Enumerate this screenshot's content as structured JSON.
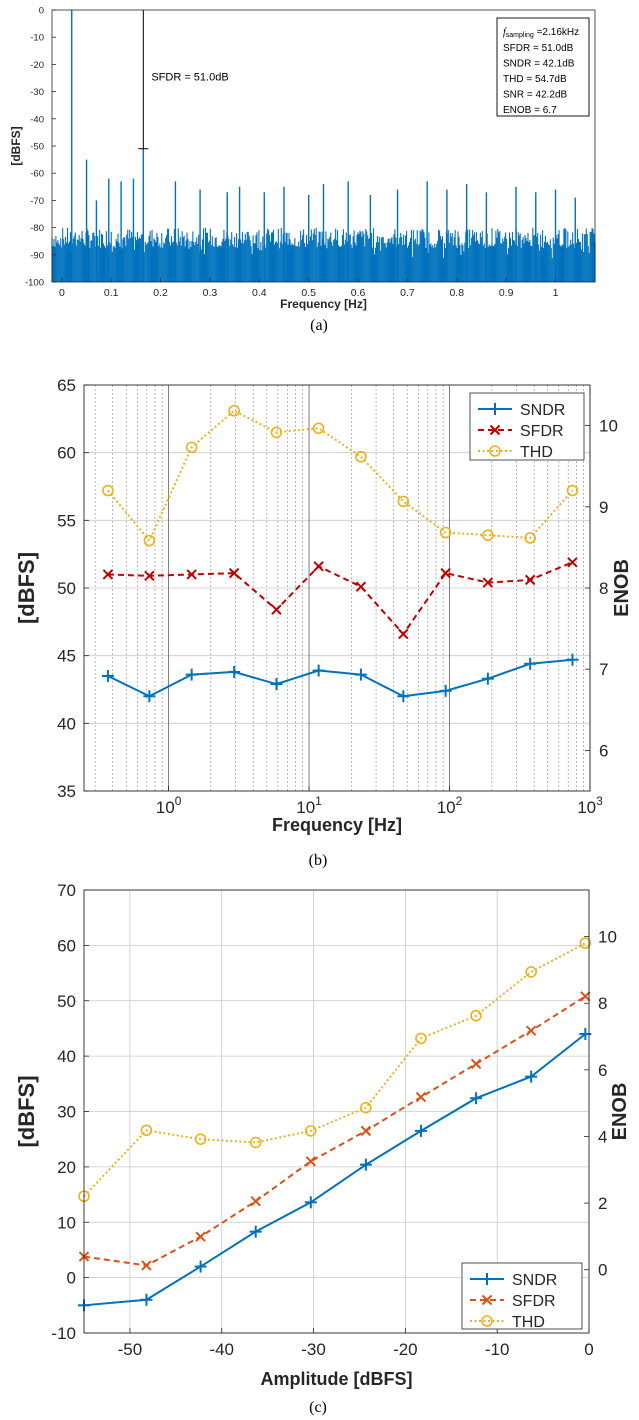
{
  "chart_data": [
    {
      "type": "line",
      "panel": "a",
      "caption": "(a)",
      "xlabel": "Frequency [Hz]",
      "ylabel": "[dBFS]",
      "xlim": [
        -0.02,
        1.08
      ],
      "ylim": [
        -100,
        0
      ],
      "xticks": [
        0,
        0.1,
        0.2,
        0.3,
        0.4,
        0.5,
        0.6,
        0.7,
        0.8,
        0.9,
        1
      ],
      "xtick_labels": [
        "0",
        "0.1",
        "0.2",
        "0.3",
        "0.4",
        "0.5",
        "0.6",
        "0.7",
        "0.8",
        "0.9",
        "1"
      ],
      "yticks": [
        0,
        -10,
        -20,
        -30,
        -40,
        -50,
        -60,
        -70,
        -80,
        -90,
        -100
      ],
      "ytick_labels": [
        "0",
        "-10",
        "-20",
        "-30",
        "-40",
        "-50",
        "-60",
        "-70",
        "-80",
        "-90",
        "-100"
      ],
      "grid": false,
      "series_color": "#0072BD",
      "noise_floor": [
        -100,
        -80
      ],
      "spurs": [
        {
          "x": 0.02,
          "y": 0
        },
        {
          "x": 0.05,
          "y": -55
        },
        {
          "x": 0.07,
          "y": -70
        },
        {
          "x": 0.095,
          "y": -62
        },
        {
          "x": 0.12,
          "y": -63
        },
        {
          "x": 0.145,
          "y": -62
        },
        {
          "x": 0.165,
          "y": -51
        },
        {
          "x": 0.23,
          "y": -63
        },
        {
          "x": 0.28,
          "y": -66
        },
        {
          "x": 0.335,
          "y": -67
        },
        {
          "x": 0.36,
          "y": -65
        },
        {
          "x": 0.41,
          "y": -67
        },
        {
          "x": 0.45,
          "y": -65
        },
        {
          "x": 0.5,
          "y": -68
        },
        {
          "x": 0.53,
          "y": -64
        },
        {
          "x": 0.58,
          "y": -63
        },
        {
          "x": 0.625,
          "y": -68
        },
        {
          "x": 0.68,
          "y": -66
        },
        {
          "x": 0.74,
          "y": -63
        },
        {
          "x": 0.78,
          "y": -66
        },
        {
          "x": 0.82,
          "y": -64
        },
        {
          "x": 0.86,
          "y": -67
        },
        {
          "x": 0.92,
          "y": -65
        },
        {
          "x": 0.96,
          "y": -67
        },
        {
          "x": 1.0,
          "y": -66
        },
        {
          "x": 1.04,
          "y": -69
        }
      ],
      "annotation": "SFDR = 51.0dB",
      "annotation_marker": {
        "x": 0.165,
        "y_top": 0,
        "y_bottom": -51
      },
      "info_box": {
        "fsampling_symbol": "f",
        "fsampling_subscript": "sampling",
        "fsampling_value": " =2.16kHz",
        "lines": [
          "SFDR = 51.0dB",
          "SNDR = 42.1dB",
          "THD = 54.7dB",
          "SNR = 42.2dB",
          "ENOB = 6.7"
        ]
      }
    },
    {
      "type": "line",
      "panel": "b",
      "caption": "(b)",
      "xlabel": "Frequency [Hz]",
      "ylabel": "[dBFS]",
      "y2label": "ENOB",
      "xscale": "log",
      "xlim": [
        0.25,
        1000
      ],
      "ylim": [
        35,
        65
      ],
      "y2lim": [
        5.5,
        10.5
      ],
      "yticks": [
        35,
        40,
        45,
        50,
        55,
        60,
        65
      ],
      "ytick_labels": [
        "35",
        "40",
        "45",
        "50",
        "55",
        "60",
        "65"
      ],
      "y2ticks": [
        6,
        7,
        8,
        9,
        10
      ],
      "y2tick_labels": [
        "6",
        "7",
        "8",
        "9",
        "10"
      ],
      "xticks": [
        1,
        10,
        100,
        1000
      ],
      "xtick_base": "10",
      "xtick_exponents": [
        "0",
        "1",
        "2",
        "3"
      ],
      "grid": true,
      "legend_position": "top-right",
      "x": [
        0.37,
        0.73,
        1.46,
        2.93,
        5.86,
        11.7,
        23.4,
        46.9,
        93.8,
        187.5,
        375,
        750
      ],
      "series": [
        {
          "name": "SNDR",
          "color": "#0072BD",
          "marker": "plus",
          "dash": "solid",
          "values": [
            43.5,
            42.0,
            43.6,
            43.8,
            42.9,
            43.9,
            43.6,
            42.0,
            42.4,
            43.3,
            44.4,
            44.7
          ]
        },
        {
          "name": "SFDR",
          "color": "#C00000",
          "marker": "x",
          "dash": "dashed",
          "values": [
            51.0,
            50.9,
            51.0,
            51.1,
            48.4,
            51.6,
            50.1,
            46.6,
            51.1,
            50.4,
            50.6,
            51.9
          ]
        },
        {
          "name": "THD",
          "color": "#EDB120",
          "marker": "circle",
          "dash": "dotted",
          "values": [
            57.2,
            53.5,
            60.4,
            63.1,
            61.5,
            61.8,
            59.7,
            56.4,
            54.1,
            53.9,
            53.7,
            57.2
          ]
        }
      ]
    },
    {
      "type": "line",
      "panel": "c",
      "caption": "(c)",
      "xlabel": "Amplitude [dBFS]",
      "ylabel": "[dBFS]",
      "y2label": "ENOB",
      "xlim": [
        -55,
        0
      ],
      "ylim": [
        -10,
        70
      ],
      "y2lim": [
        -1.9,
        11.4
      ],
      "xticks": [
        -50,
        -40,
        -30,
        -20,
        -10,
        0
      ],
      "xtick_labels": [
        "-50",
        "-40",
        "-30",
        "-20",
        "-10",
        "0"
      ],
      "yticks": [
        -10,
        0,
        10,
        20,
        30,
        40,
        50,
        60,
        70
      ],
      "ytick_labels": [
        "-10",
        "0",
        "10",
        "20",
        "30",
        "40",
        "50",
        "60",
        "70"
      ],
      "y2ticks": [
        0,
        2,
        4,
        6,
        8,
        10
      ],
      "y2tick_labels": [
        "0",
        "2",
        "4",
        "6",
        "8",
        "10"
      ],
      "grid": true,
      "legend_position": "bottom-right",
      "x": [
        -55,
        -48.2,
        -42.3,
        -36.3,
        -30.3,
        -24.3,
        -18.3,
        -12.3,
        -6.3,
        -0.4
      ],
      "series": [
        {
          "name": "SNDR",
          "color": "#0072BD",
          "marker": "plus",
          "dash": "solid",
          "values": [
            -5.0,
            -4.0,
            2.0,
            8.3,
            13.6,
            20.4,
            26.5,
            32.4,
            36.3,
            44.0
          ]
        },
        {
          "name": "SFDR",
          "color": "#D95319",
          "marker": "x",
          "dash": "dashed",
          "values": [
            3.8,
            2.2,
            7.4,
            13.8,
            21.0,
            26.5,
            32.6,
            38.6,
            44.6,
            50.8
          ]
        },
        {
          "name": "THD",
          "color": "#EDB120",
          "marker": "circle",
          "dash": "dotted",
          "values": [
            14.7,
            26.6,
            25.0,
            24.4,
            26.5,
            30.7,
            43.2,
            47.3,
            55.2,
            60.4
          ]
        }
      ]
    }
  ]
}
